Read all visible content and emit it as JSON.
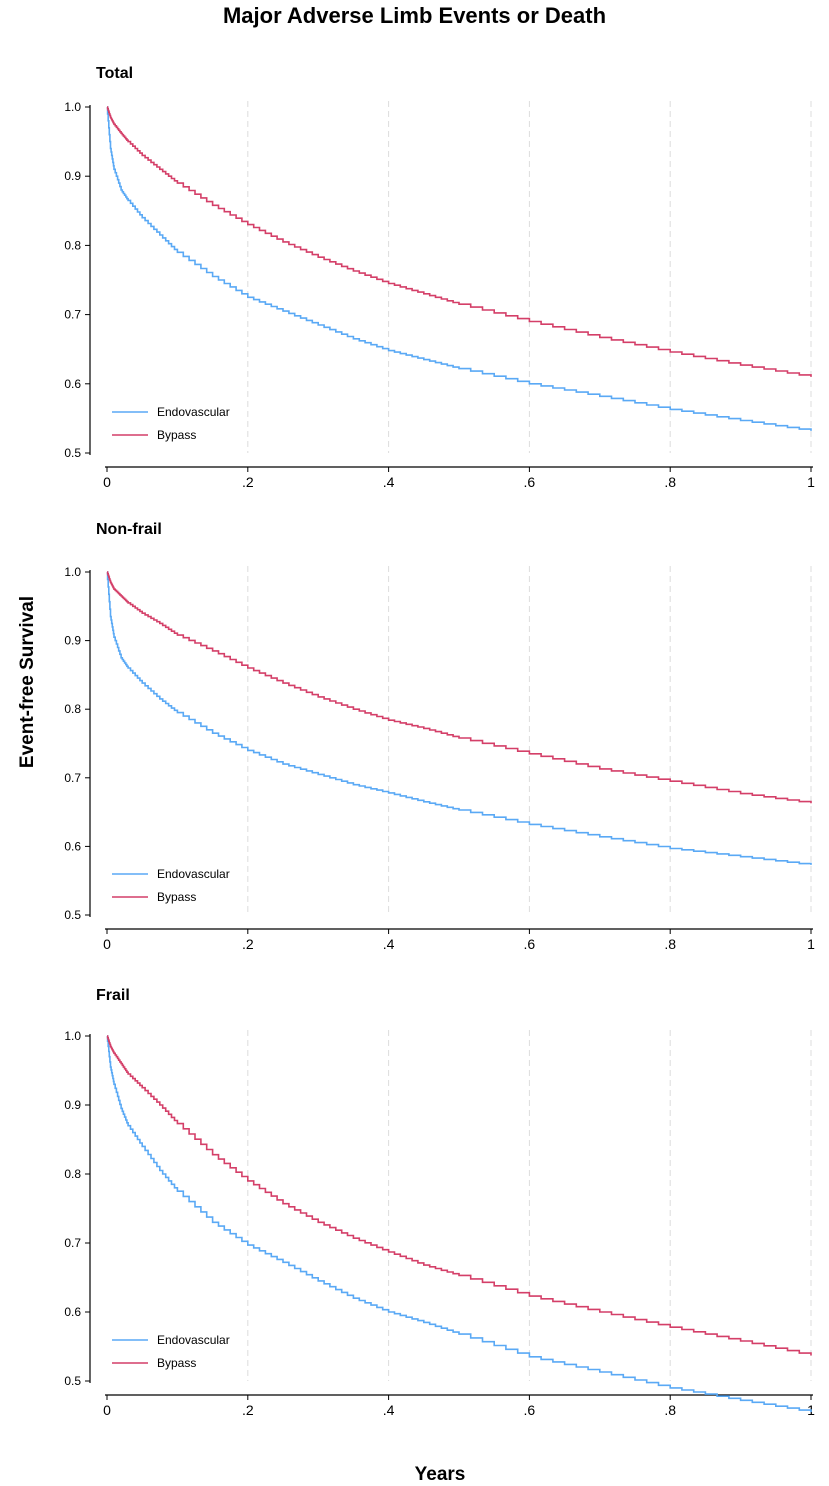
{
  "figure": {
    "title": "Major Adverse Limb Events or Death",
    "ylabel": "Event-free Survival",
    "xlabel": "Years"
  },
  "colors": {
    "endovascular": "#5aa9f5",
    "bypass": "#d43f68",
    "grid": "#dddddd",
    "axis": "#000000"
  },
  "chart_data": [
    {
      "type": "line",
      "title": "Total",
      "xlim": [
        0,
        1
      ],
      "ylim": [
        0.5,
        1.0
      ],
      "xticks": [
        0,
        0.2,
        0.4,
        0.6,
        0.8,
        1
      ],
      "xtick_labels": [
        "0",
        ".2",
        ".4",
        ".6",
        ".8",
        "1"
      ],
      "yticks": [
        0.5,
        0.6,
        0.7,
        0.8,
        0.9,
        1.0
      ],
      "ytick_labels": [
        "0.5",
        "0.6",
        "0.7",
        "0.8",
        "0.9",
        "1.0"
      ],
      "legend_position": "bottom-left",
      "x": [
        0,
        0.005,
        0.01,
        0.02,
        0.03,
        0.05,
        0.075,
        0.1,
        0.15,
        0.2,
        0.25,
        0.3,
        0.35,
        0.4,
        0.45,
        0.5,
        0.6,
        0.7,
        0.8,
        0.9,
        1.0
      ],
      "series": [
        {
          "name": "Endovascular",
          "values": [
            1.0,
            0.94,
            0.91,
            0.88,
            0.865,
            0.84,
            0.815,
            0.79,
            0.755,
            0.725,
            0.705,
            0.685,
            0.665,
            0.648,
            0.635,
            0.622,
            0.6,
            0.582,
            0.563,
            0.547,
            0.532
          ]
        },
        {
          "name": "Bypass",
          "values": [
            1.0,
            0.985,
            0.975,
            0.962,
            0.95,
            0.93,
            0.91,
            0.89,
            0.858,
            0.83,
            0.805,
            0.783,
            0.763,
            0.745,
            0.73,
            0.715,
            0.69,
            0.667,
            0.646,
            0.627,
            0.61
          ]
        }
      ]
    },
    {
      "type": "line",
      "title": "Non-frail",
      "xlim": [
        0,
        1
      ],
      "ylim": [
        0.5,
        1.0
      ],
      "xticks": [
        0,
        0.2,
        0.4,
        0.6,
        0.8,
        1
      ],
      "xtick_labels": [
        "0",
        ".2",
        ".4",
        ".6",
        ".8",
        "1"
      ],
      "yticks": [
        0.5,
        0.6,
        0.7,
        0.8,
        0.9,
        1.0
      ],
      "ytick_labels": [
        "0.5",
        "0.6",
        "0.7",
        "0.8",
        "0.9",
        "1.0"
      ],
      "legend_position": "bottom-left",
      "x": [
        0,
        0.005,
        0.01,
        0.02,
        0.03,
        0.05,
        0.075,
        0.1,
        0.15,
        0.2,
        0.25,
        0.3,
        0.35,
        0.4,
        0.45,
        0.5,
        0.6,
        0.7,
        0.8,
        0.9,
        1.0
      ],
      "series": [
        {
          "name": "Endovascular",
          "values": [
            1.0,
            0.935,
            0.905,
            0.875,
            0.86,
            0.838,
            0.815,
            0.795,
            0.765,
            0.74,
            0.72,
            0.705,
            0.69,
            0.678,
            0.665,
            0.653,
            0.632,
            0.614,
            0.597,
            0.585,
            0.573
          ]
        },
        {
          "name": "Bypass",
          "values": [
            1.0,
            0.985,
            0.975,
            0.965,
            0.955,
            0.94,
            0.925,
            0.908,
            0.885,
            0.86,
            0.838,
            0.818,
            0.8,
            0.784,
            0.772,
            0.758,
            0.735,
            0.713,
            0.695,
            0.677,
            0.663
          ]
        }
      ]
    },
    {
      "type": "line",
      "title": "Frail",
      "xlim": [
        0,
        1
      ],
      "ylim": [
        0.5,
        1.0
      ],
      "xticks": [
        0,
        0.2,
        0.4,
        0.6,
        0.8,
        1
      ],
      "xtick_labels": [
        "0",
        ".2",
        ".4",
        ".6",
        ".8",
        "1"
      ],
      "yticks": [
        0.5,
        0.6,
        0.7,
        0.8,
        0.9,
        1.0
      ],
      "ytick_labels": [
        "0.5",
        "0.6",
        "0.7",
        "0.8",
        "0.9",
        "1.0"
      ],
      "legend_position": "bottom-left",
      "x": [
        0,
        0.005,
        0.01,
        0.02,
        0.03,
        0.05,
        0.075,
        0.1,
        0.15,
        0.2,
        0.25,
        0.3,
        0.35,
        0.4,
        0.45,
        0.5,
        0.6,
        0.7,
        0.8,
        0.9,
        1.0
      ],
      "series": [
        {
          "name": "Endovascular",
          "values": [
            1.0,
            0.955,
            0.93,
            0.895,
            0.87,
            0.84,
            0.805,
            0.775,
            0.73,
            0.697,
            0.672,
            0.645,
            0.62,
            0.6,
            0.585,
            0.568,
            0.535,
            0.513,
            0.49,
            0.472,
            0.455
          ]
        },
        {
          "name": "Bypass",
          "values": [
            1.0,
            0.985,
            0.975,
            0.96,
            0.945,
            0.925,
            0.9,
            0.873,
            0.828,
            0.79,
            0.757,
            0.73,
            0.707,
            0.687,
            0.668,
            0.653,
            0.623,
            0.6,
            0.578,
            0.558,
            0.537
          ]
        }
      ]
    }
  ]
}
